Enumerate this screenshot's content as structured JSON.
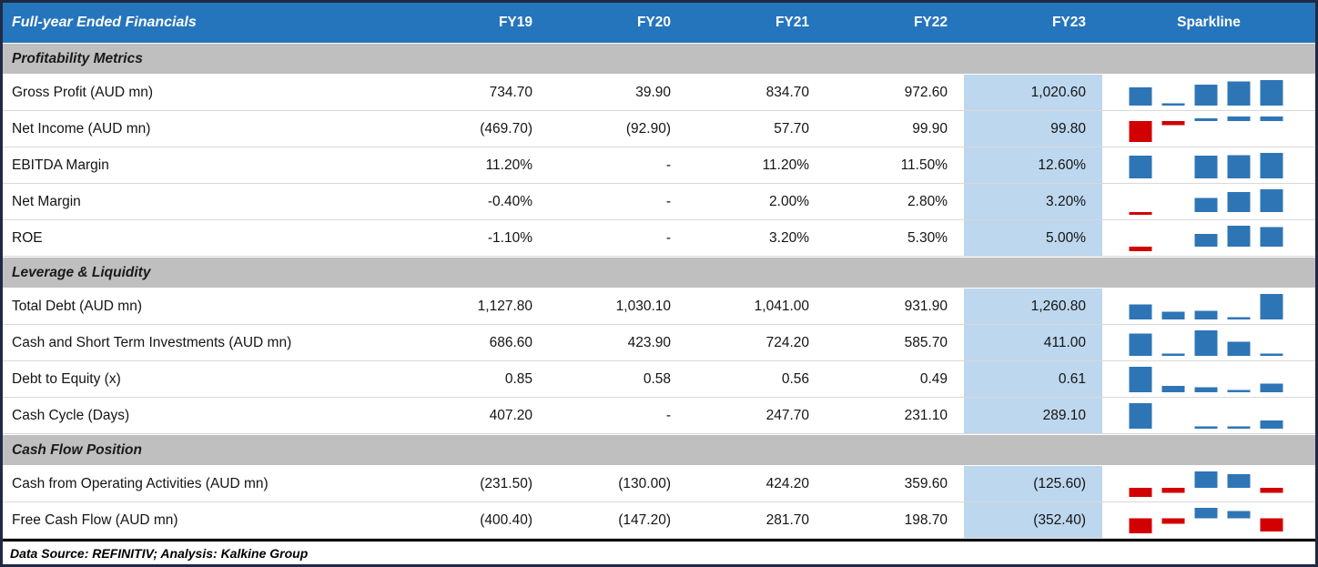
{
  "chart_data": {
    "type": "table",
    "title": "Full-year Ended Financials",
    "columns": [
      "FY19",
      "FY20",
      "FY21",
      "FY22",
      "FY23"
    ],
    "sparkline_label": "Sparkline",
    "highlight_column": "FY23",
    "sections": [
      {
        "label": "Profitability Metrics",
        "rows": [
          {
            "label": "Gross Profit (AUD mn)",
            "display": [
              "734.70",
              "39.90",
              "834.70",
              "972.60",
              "1,020.60"
            ],
            "values": [
              734.7,
              39.9,
              834.7,
              972.6,
              1020.6
            ],
            "sparkline_scale": "zero"
          },
          {
            "label": "Net Income (AUD mn)",
            "display": [
              "(469.70)",
              "(92.90)",
              "57.70",
              "99.90",
              "99.80"
            ],
            "values": [
              -469.7,
              -92.9,
              57.7,
              99.9,
              99.8
            ],
            "sparkline_scale": "zero"
          },
          {
            "label": "EBITDA Margin",
            "display": [
              "11.20%",
              "-",
              "11.20%",
              "11.50%",
              "12.60%"
            ],
            "values": [
              11.2,
              null,
              11.2,
              11.5,
              12.6
            ],
            "sparkline_scale": "zero"
          },
          {
            "label": "Net Margin",
            "display": [
              "-0.40%",
              "-",
              "2.00%",
              "2.80%",
              "3.20%"
            ],
            "values": [
              -0.4,
              null,
              2.0,
              2.8,
              3.2
            ],
            "sparkline_scale": "zero"
          },
          {
            "label": "ROE",
            "display": [
              "-1.10%",
              "-",
              "3.20%",
              "5.30%",
              "5.00%"
            ],
            "values": [
              -1.1,
              null,
              3.2,
              5.3,
              5.0
            ],
            "sparkline_scale": "zero"
          }
        ]
      },
      {
        "label": "Leverage & Liquidity",
        "rows": [
          {
            "label": "Total Debt (AUD mn)",
            "display": [
              "1,127.80",
              "1,030.10",
              "1,041.00",
              "931.90",
              "1,260.80"
            ],
            "values": [
              1127.8,
              1030.1,
              1041.0,
              931.9,
              1260.8
            ],
            "sparkline_scale": "min"
          },
          {
            "label": "Cash and Short Term Investments (AUD mn)",
            "display": [
              "686.60",
              "423.90",
              "724.20",
              "585.70",
              "411.00"
            ],
            "values": [
              686.6,
              423.9,
              724.2,
              585.7,
              411.0
            ],
            "sparkline_scale": "min"
          },
          {
            "label": "Debt to Equity (x)",
            "display": [
              "0.85",
              "0.58",
              "0.56",
              "0.49",
              "0.61"
            ],
            "values": [
              0.85,
              0.58,
              0.56,
              0.49,
              0.61
            ],
            "sparkline_scale": "min"
          },
          {
            "label": "Cash Cycle (Days)",
            "display": [
              "407.20",
              "-",
              "247.70",
              "231.10",
              "289.10"
            ],
            "values": [
              407.2,
              null,
              247.7,
              231.1,
              289.1
            ],
            "sparkline_scale": "min"
          }
        ]
      },
      {
        "label": "Cash Flow Position",
        "rows": [
          {
            "label": "Cash from Operating Activities (AUD mn)",
            "display": [
              "(231.50)",
              "(130.00)",
              "424.20",
              "359.60",
              "(125.60)"
            ],
            "values": [
              -231.5,
              -130.0,
              424.2,
              359.6,
              -125.6
            ],
            "sparkline_scale": "zero"
          },
          {
            "label": "Free Cash Flow (AUD mn)",
            "display": [
              "(400.40)",
              "(147.20)",
              "281.70",
              "198.70",
              "(352.40)"
            ],
            "values": [
              -400.4,
              -147.2,
              281.7,
              198.7,
              -352.4
            ],
            "sparkline_scale": "zero"
          }
        ]
      }
    ]
  },
  "footer": {
    "text": "Data Source: REFINITIV; Analysis: Kalkine Group"
  },
  "colors": {
    "header_bg": "#2575BC",
    "header_text": "#FFFFFF",
    "section_bg": "#BFBFBF",
    "highlight_bg": "#BDD7EE",
    "bar_positive": "#2E75B6",
    "bar_negative": "#D20000",
    "outer_border": "#1E2A44"
  }
}
